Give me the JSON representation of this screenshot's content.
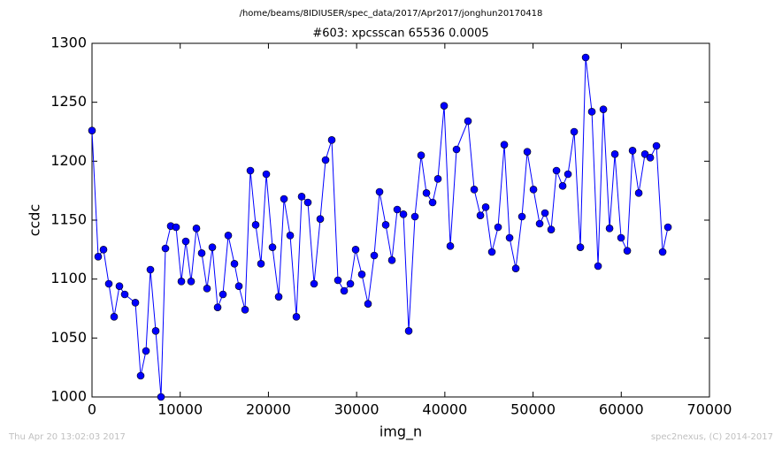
{
  "chart_data": {
    "type": "line",
    "suptitle": "/home/beams/8IDIUSER/spec_data/2017/Apr2017/jonghun20170418",
    "title": "#603: xpcsscan 65536 0.0005",
    "xlabel": "img_n",
    "ylabel": "ccdc",
    "footer_left": "Thu Apr 20 13:02:03 2017",
    "footer_right": "spec2nexus, (C) 2014-2017",
    "color": "#0000ff",
    "x": [
      0,
      702,
      1304,
      1906,
      2508,
      3109,
      3711,
      4915,
      5517,
      6119,
      6620,
      7222,
      7824,
      8325,
      8927,
      9529,
      10131,
      10632,
      11234,
      11836,
      12438,
      13039,
      13641,
      14243,
      14844,
      15446,
      16148,
      16650,
      17352,
      17954,
      18555,
      19157,
      19759,
      20461,
      21163,
      21765,
      22467,
      23169,
      23770,
      24472,
      25175,
      25877,
      26478,
      27180,
      27882,
      28584,
      29287,
      29888,
      30590,
      31292,
      31994,
      32596,
      33298,
      34000,
      34602,
      35304,
      35906,
      36608,
      37310,
      37912,
      38614,
      39216,
      39918,
      40620,
      41322,
      42626,
      43328,
      44030,
      44632,
      45334,
      46036,
      46738,
      47340,
      48042,
      48744,
      49346,
      50048,
      50750,
      51352,
      52054,
      52656,
      53358,
      53960,
      54662,
      55364,
      55966,
      56668,
      57370,
      57972,
      58674,
      59276,
      59978,
      60680,
      61282,
      61984,
      62686,
      63288,
      63990,
      64692,
      65294
    ],
    "values": [
      1226,
      1119,
      1125,
      1096,
      1068,
      1094,
      1087,
      1080,
      1018,
      1039,
      1108,
      1056,
      1000,
      1126,
      1145,
      1144,
      1098,
      1132,
      1098,
      1143,
      1122,
      1092,
      1127,
      1076,
      1087,
      1137,
      1113,
      1094,
      1074,
      1192,
      1146,
      1113,
      1189,
      1127,
      1085,
      1168,
      1137,
      1068,
      1170,
      1165,
      1096,
      1151,
      1201,
      1218,
      1099,
      1090,
      1096,
      1125,
      1104,
      1079,
      1120,
      1174,
      1146,
      1116,
      1159,
      1155,
      1056,
      1153,
      1205,
      1173,
      1165,
      1185,
      1247,
      1128,
      1210,
      1234,
      1176,
      1154,
      1161,
      1123,
      1144,
      1214,
      1135,
      1109,
      1153,
      1208,
      1176,
      1147,
      1156,
      1142,
      1192,
      1179,
      1189,
      1225,
      1127,
      1288,
      1242,
      1111,
      1244,
      1143,
      1206,
      1135,
      1124,
      1209,
      1173,
      1206,
      1203,
      1213,
      1123,
      1144
    ],
    "xlim": [
      0,
      70000
    ],
    "xticks": [
      0,
      10000,
      20000,
      30000,
      40000,
      50000,
      60000,
      70000
    ],
    "ylim": [
      1000,
      1300
    ],
    "yticks": [
      1000,
      1050,
      1100,
      1150,
      1200,
      1250,
      1300
    ],
    "grid": false
  }
}
